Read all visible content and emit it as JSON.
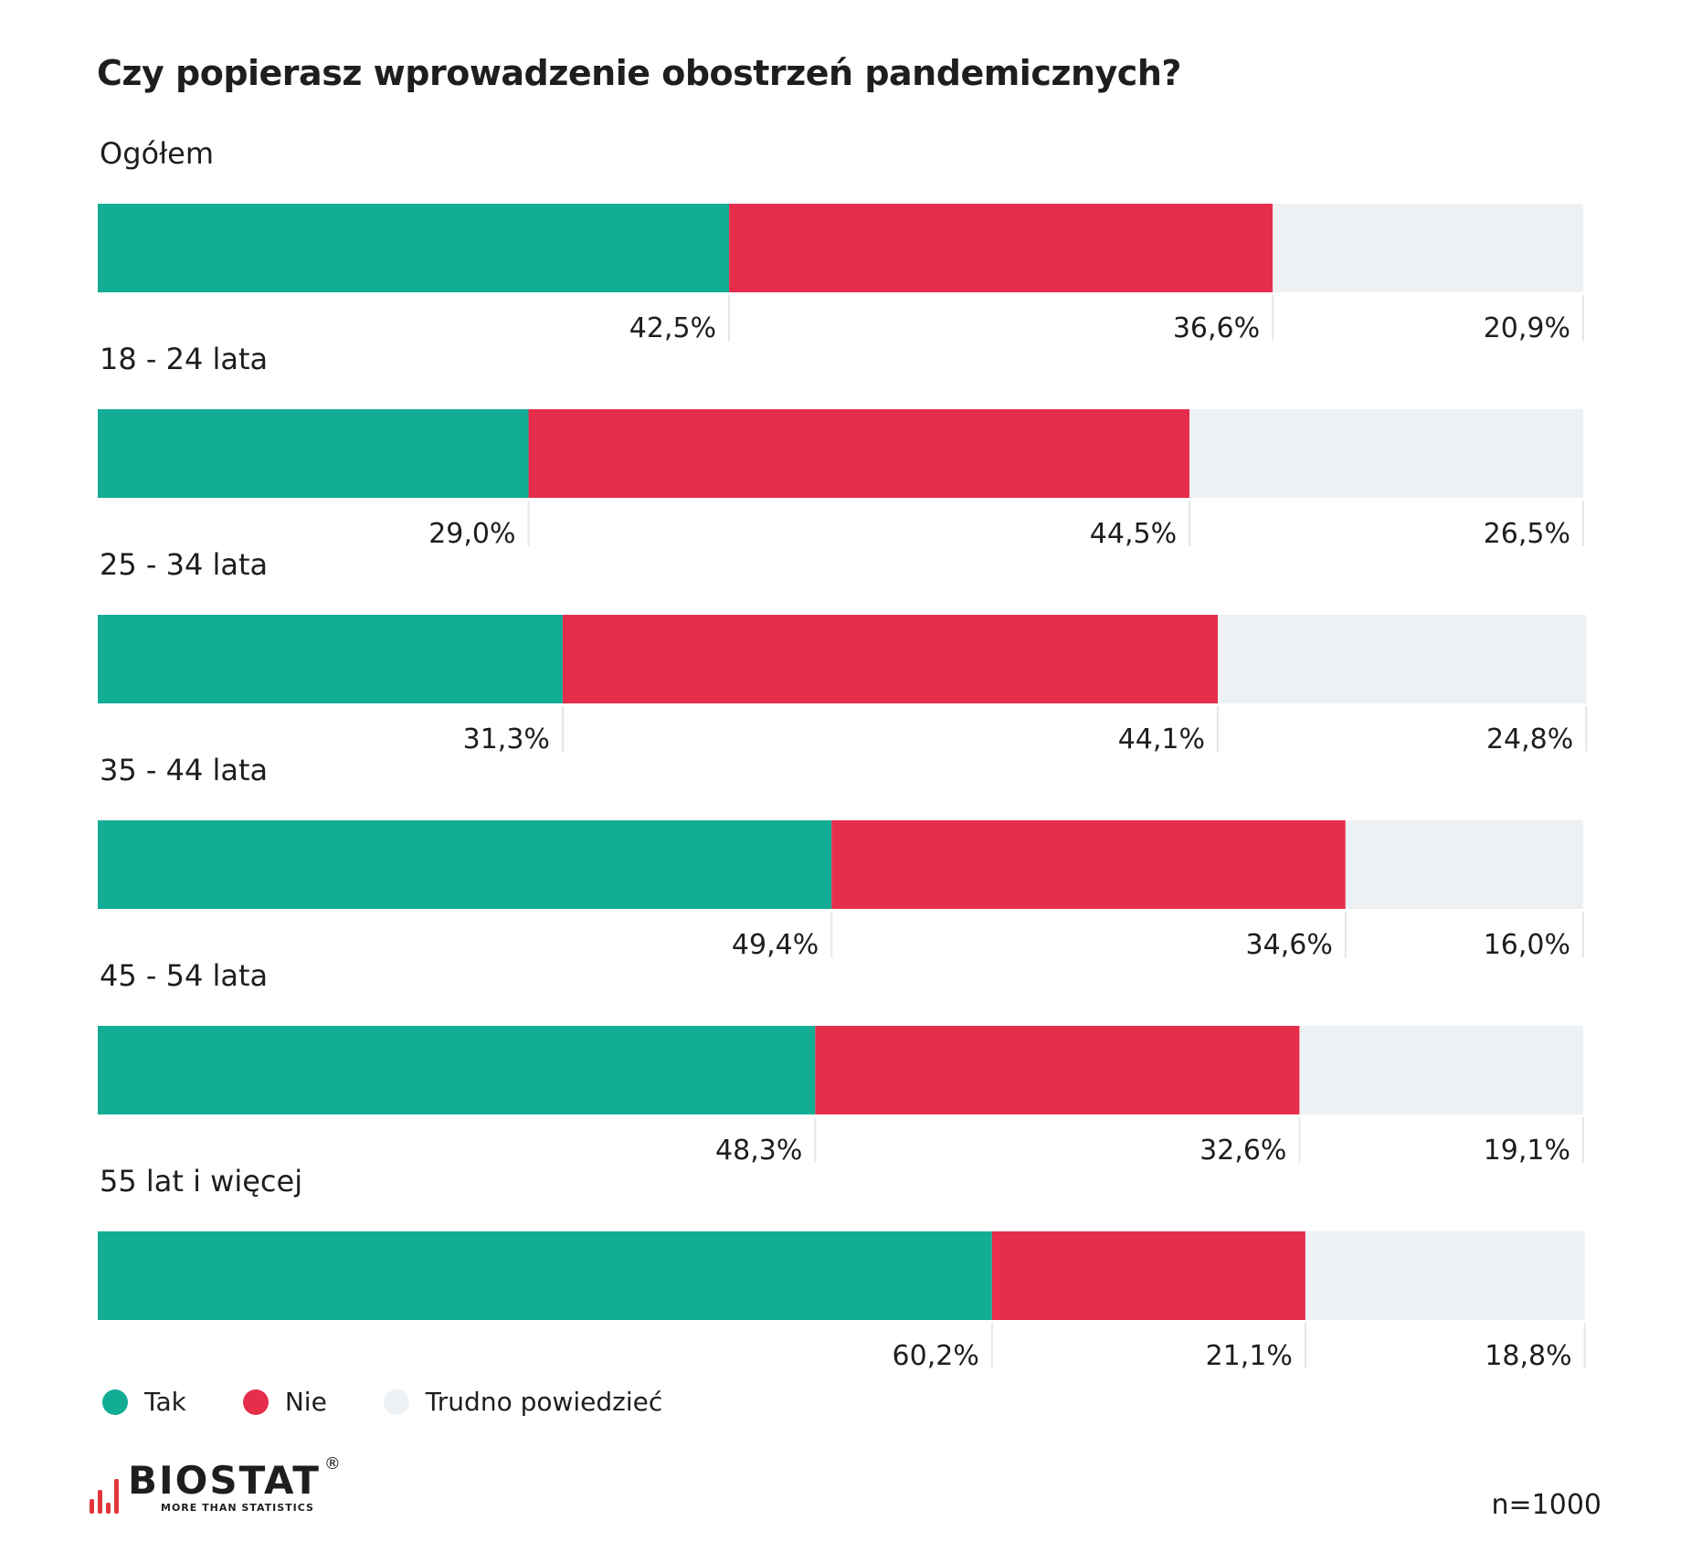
{
  "title": "Czy popierasz wprowadzenie obostrzeń pandemicznych?",
  "chart_data": {
    "type": "bar",
    "orientation": "horizontal",
    "stacked": true,
    "percent_stacked": true,
    "title": "Czy popierasz wprowadzenie obostrzeń pandemicznych?",
    "categories": [
      "Ogółem",
      "18 - 24 lata",
      "25 - 34 lata",
      "35 - 44 lata",
      "45 - 54 lata",
      "55 lat i więcej"
    ],
    "series": [
      {
        "name": "Tak",
        "color": "#13ad95",
        "values": [
          42.5,
          29.0,
          31.3,
          49.4,
          48.3,
          60.2
        ],
        "labels": [
          "42,5%",
          "29,0%",
          "31,3%",
          "49,4%",
          "48,3%",
          "60,2%"
        ]
      },
      {
        "name": "Nie",
        "color": "#e62e4c",
        "values": [
          36.6,
          44.5,
          44.1,
          34.6,
          32.6,
          21.1
        ],
        "labels": [
          "36,6%",
          "44,5%",
          "44,1%",
          "34,6%",
          "32,6%",
          "21,1%"
        ]
      },
      {
        "name": "Trudno powiedzieć",
        "color": "#edf1f4",
        "values": [
          20.9,
          26.5,
          24.8,
          16.0,
          19.1,
          18.8
        ],
        "labels": [
          "20,9%",
          "26,5%",
          "24,8%",
          "16,0%",
          "19,1%",
          "18,8%"
        ]
      }
    ],
    "xlim": [
      0,
      100
    ],
    "grid": false,
    "legend_position": "bottom-left"
  },
  "legend": [
    {
      "label": "Tak",
      "color": "#13ad95"
    },
    {
      "label": "Nie",
      "color": "#e62e4c"
    },
    {
      "label": "Trudno powiedzieć",
      "color": "#edf1f4"
    }
  ],
  "logo": {
    "name": "BIOSTAT",
    "tagline": "MORE THAN STATISTICS",
    "reg": "®"
  },
  "sample_size": "n=1000"
}
